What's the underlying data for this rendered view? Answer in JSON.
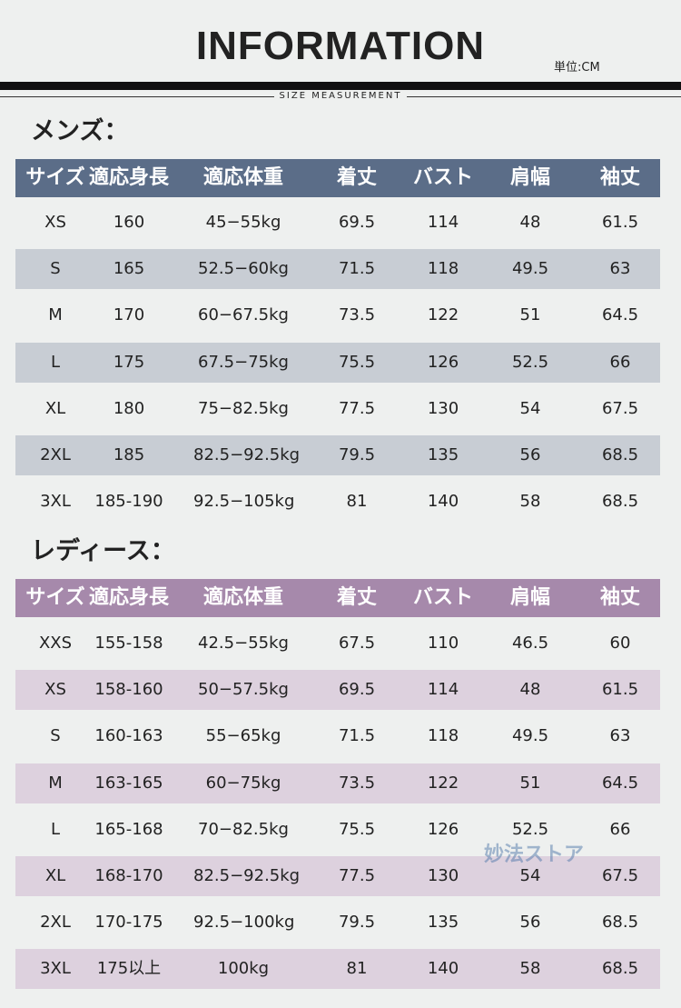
{
  "header": {
    "title": "INFORMATION",
    "unit": "単位:CM",
    "subtitle": "SIZE MEASUREMENT"
  },
  "sections": [
    {
      "label": "メンズ：",
      "columns": [
        "サイズ",
        "適応身長",
        "適応体重",
        "着丈",
        "バスト",
        "肩幅",
        "袖丈"
      ],
      "rows": [
        [
          "XS",
          "160",
          "45−55kg",
          "69.5",
          "114",
          "48",
          "61.5"
        ],
        [
          "S",
          "165",
          "52.5−60kg",
          "71.5",
          "118",
          "49.5",
          "63"
        ],
        [
          "M",
          "170",
          "60−67.5kg",
          "73.5",
          "122",
          "51",
          "64.5"
        ],
        [
          "L",
          "175",
          "67.5−75kg",
          "75.5",
          "126",
          "52.5",
          "66"
        ],
        [
          "XL",
          "180",
          "75−82.5kg",
          "77.5",
          "130",
          "54",
          "67.5"
        ],
        [
          "2XL",
          "185",
          "82.5−92.5kg",
          "79.5",
          "135",
          "56",
          "68.5"
        ],
        [
          "3XL",
          "185-190",
          "92.5−105kg",
          "81",
          "140",
          "58",
          "68.5"
        ]
      ]
    },
    {
      "label": "レディース：",
      "columns": [
        "サイズ",
        "適応身長",
        "適応体重",
        "着丈",
        "バスト",
        "肩幅",
        "袖丈"
      ],
      "rows": [
        [
          "XXS",
          "155-158",
          "42.5−55kg",
          "67.5",
          "110",
          "46.5",
          "60"
        ],
        [
          "XS",
          "158-160",
          "50−57.5kg",
          "69.5",
          "114",
          "48",
          "61.5"
        ],
        [
          "S",
          "160-163",
          "55−65kg",
          "71.5",
          "118",
          "49.5",
          "63"
        ],
        [
          "M",
          "163-165",
          "60−75kg",
          "73.5",
          "122",
          "51",
          "64.5"
        ],
        [
          "L",
          "165-168",
          "70−82.5kg",
          "75.5",
          "126",
          "52.5",
          "66"
        ],
        [
          "XL",
          "168-170",
          "82.5−92.5kg",
          "77.5",
          "130",
          "54",
          "67.5"
        ],
        [
          "2XL",
          "170-175",
          "92.5−100kg",
          "79.5",
          "135",
          "56",
          "68.5"
        ],
        [
          "3XL",
          "175以上",
          "100kg",
          "81",
          "140",
          "58",
          "68.5"
        ]
      ]
    }
  ],
  "watermark": "妙法ストア"
}
